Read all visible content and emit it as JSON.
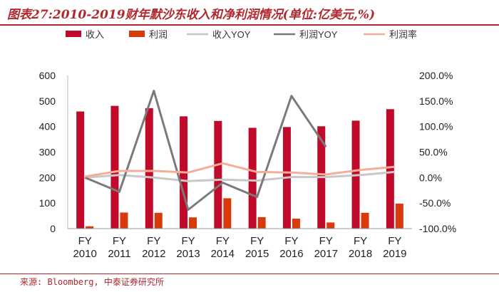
{
  "title": "图表27:2010-2019财年默沙东收入和净利润情况(单位:亿美元,%)",
  "source": "来源: Bloomberg, 中泰证券研究所",
  "colors": {
    "revenue": "#c00a2a",
    "profit": "#d93a0b",
    "revenue_yoy": "#c8c8c8",
    "profit_yoy": "#7a7a7a",
    "profit_margin": "#f6ad98",
    "accent": "#b0282e"
  },
  "chart_data": {
    "type": "bar",
    "categories": [
      "FY 2010",
      "FY 2011",
      "FY 2012",
      "FY 2013",
      "FY 2014",
      "FY 2015",
      "FY 2016",
      "FY 2017",
      "FY 2018",
      "FY 2019"
    ],
    "category_lines": [
      [
        "FY",
        "2010"
      ],
      [
        "FY",
        "2011"
      ],
      [
        "FY",
        "2012"
      ],
      [
        "FY",
        "2013"
      ],
      [
        "FY",
        "2014"
      ],
      [
        "FY",
        "2015"
      ],
      [
        "FY",
        "2016"
      ],
      [
        "FY",
        "2017"
      ],
      [
        "FY",
        "2018"
      ],
      [
        "FY",
        "2019"
      ]
    ],
    "ylim": [
      0,
      600
    ],
    "yticks": [
      0,
      100,
      200,
      300,
      400,
      500,
      600
    ],
    "y2lim": [
      -100,
      200
    ],
    "y2ticks": [
      "-100.0%",
      "-50.0%",
      "0.0%",
      "50.0%",
      "100.0%",
      "150.0%",
      "200.0%"
    ],
    "legend_position": "top",
    "series": [
      {
        "name": "收入",
        "type": "bar",
        "axis": "left",
        "color_key": "revenue",
        "values": [
          459,
          481,
          472,
          440,
          422,
          395,
          398,
          401,
          423,
          468
        ]
      },
      {
        "name": "利润",
        "type": "bar",
        "axis": "left",
        "color_key": "profit",
        "values": [
          9,
          63,
          62,
          44,
          119,
          45,
          39,
          24,
          62,
          98
        ]
      },
      {
        "name": "收入YOY",
        "type": "line",
        "axis": "right",
        "color_key": "revenue_yoy",
        "values": [
          0,
          5,
          0,
          -7,
          -4,
          -6,
          1,
          1,
          5,
          11
        ]
      },
      {
        "name": "利润YOY",
        "type": "line",
        "axis": "right",
        "color_key": "profit_yoy",
        "values": [
          0,
          -28,
          170,
          -63,
          -10,
          -38,
          160,
          60,
          null,
          null
        ]
      },
      {
        "name": "利润率",
        "type": "line",
        "axis": "right",
        "color_key": "profit_margin",
        "values": [
          2,
          13,
          13,
          10,
          28,
          11,
          10,
          6,
          15,
          21
        ]
      }
    ]
  }
}
